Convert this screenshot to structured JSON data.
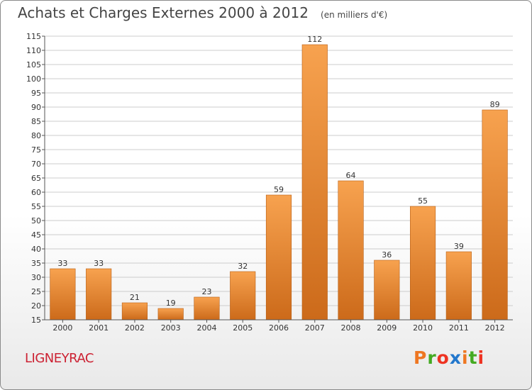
{
  "header": {
    "title": "Achats et Charges Externes 2000 à 2012",
    "subtitle": "(en milliers d'€)"
  },
  "footer": {
    "commune": "LIGNEYRAC",
    "brand": "Proxiti"
  },
  "colors": {
    "bar_light": "#f7a24f",
    "bar_dark": "#cc6a1a",
    "grid": "#cccccc",
    "commune": "#cc2233",
    "brand_letters": [
      "#ee7722",
      "#44aa22",
      "#ee3322",
      "#2277cc",
      "#ee7722",
      "#44aa22",
      "#ee3322"
    ]
  },
  "chart_data": {
    "type": "bar",
    "title": "Achats et Charges Externes 2000 à 2012",
    "subtitle": "(en milliers d'€)",
    "categories": [
      "2000",
      "2001",
      "2002",
      "2003",
      "2004",
      "2005",
      "2006",
      "2007",
      "2008",
      "2009",
      "2010",
      "2011",
      "2012"
    ],
    "values": [
      33,
      33,
      21,
      19,
      23,
      32,
      59,
      112,
      64,
      36,
      55,
      39,
      89
    ],
    "ylim": [
      15,
      115
    ],
    "yticks": [
      15,
      20,
      25,
      30,
      35,
      40,
      45,
      50,
      55,
      60,
      65,
      70,
      75,
      80,
      85,
      90,
      95,
      100,
      105,
      110,
      115
    ],
    "xlabel": "",
    "ylabel": "",
    "grid": true,
    "legend": "none"
  }
}
